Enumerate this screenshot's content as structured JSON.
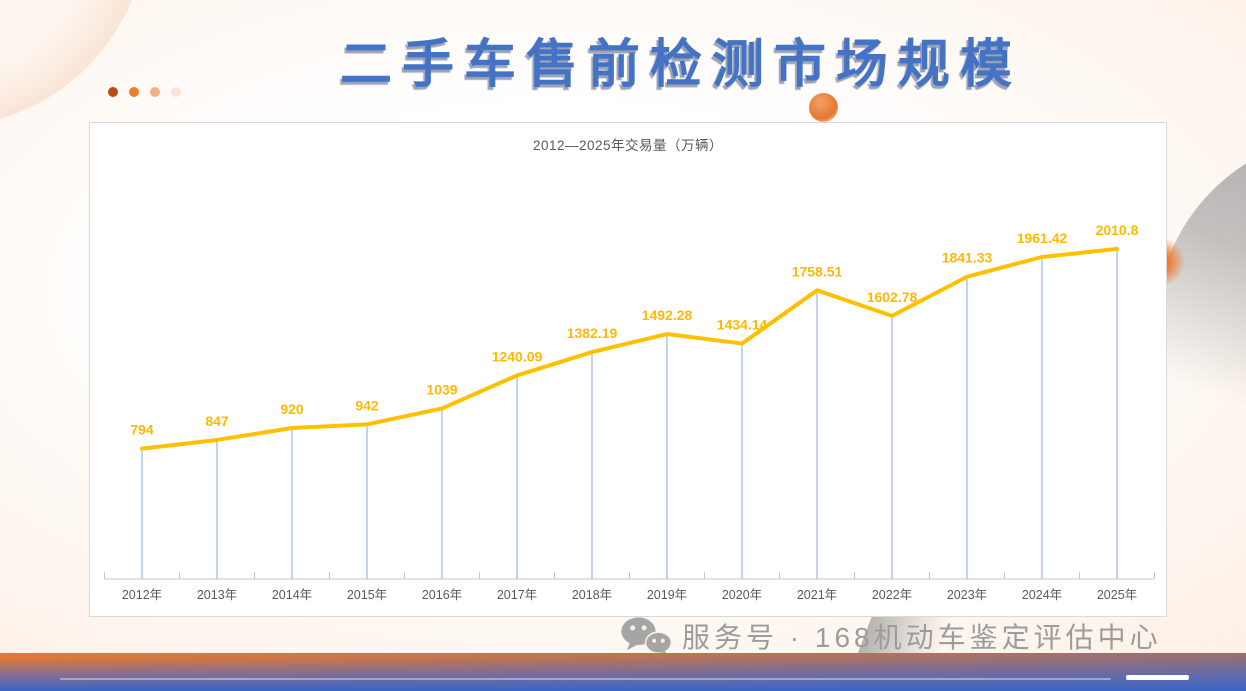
{
  "slide": {
    "title": "二手车售前检测市场规模",
    "title_color": "#4472C4",
    "decor_dot_colors": [
      "#BC4A16",
      "#ED7D31",
      "#F4B183",
      "#FBE3D6"
    ],
    "footer": {
      "icon": "wechat-icon",
      "label": "服务号 · 168机动车鉴定评估中心"
    },
    "bottom_bar": {
      "gradient_left": "#E9792C",
      "gradient_right": "#3F66C2"
    }
  },
  "chart_data": {
    "type": "line",
    "title": "2012—2025年交易量（万辆）",
    "categories": [
      "2012年",
      "2013年",
      "2014年",
      "2015年",
      "2016年",
      "2017年",
      "2018年",
      "2019年",
      "2020年",
      "2021年",
      "2022年",
      "2023年",
      "2024年",
      "2025年"
    ],
    "series": [
      {
        "name": "交易量（万辆）",
        "values": [
          794,
          847,
          920,
          942,
          1039,
          1240.09,
          1382.19,
          1492.28,
          1434.14,
          1758.51,
          1602.78,
          1841.33,
          1961.42,
          2010.8
        ]
      }
    ],
    "point_labels": [
      "794",
      "847",
      "920",
      "942",
      "1039",
      "1240.09",
      "1382.19",
      "1492.28",
      "1434.14",
      "1758.51",
      "1602.78",
      "1841.33",
      "1961.42",
      "2010.8"
    ],
    "ylim": [
      0,
      2400
    ],
    "grid": false,
    "legend": "none",
    "colors": {
      "line": "#FFC000",
      "point_label": "#FFB900",
      "dropline": "#7F9FD9",
      "axis": "#C6C6C6",
      "category_label": "#595959",
      "title": "#595959"
    }
  }
}
